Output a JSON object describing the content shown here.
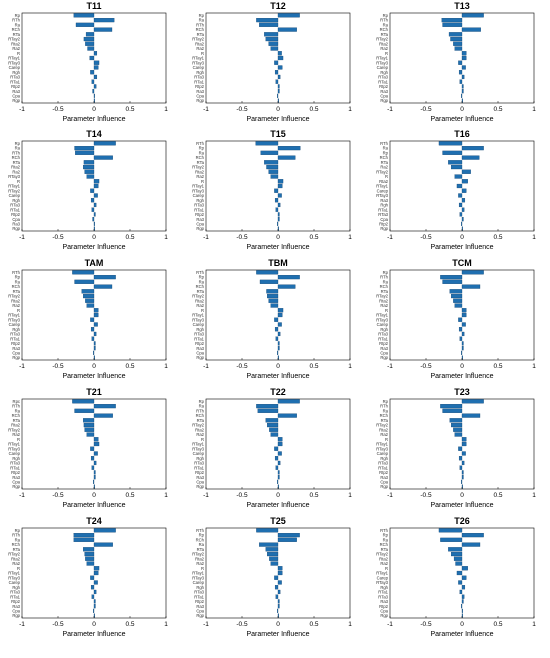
{
  "chart_data": [
    {
      "type": "bar",
      "orientation": "horizontal",
      "title": "T11",
      "xlabel": "Parameter Influence",
      "xlim": [
        -1,
        1
      ],
      "xticks": [
        "-1",
        "-0.5",
        "0",
        "0.5",
        "1"
      ],
      "categories": [
        "Rp",
        "RTh",
        "Ra",
        "RCh",
        "RTa",
        "RTay2",
        "Rta2",
        "Ra2",
        "R",
        "RTay1",
        "RTay3",
        "Carep",
        "Rgh",
        "RTa3",
        "RTa1",
        "Rtp2",
        "Ra3",
        "Cpa",
        "Rgp"
      ],
      "values": [
        -0.28,
        0.28,
        -0.25,
        0.25,
        -0.11,
        -0.14,
        -0.12,
        -0.09,
        0.04,
        -0.06,
        0.07,
        0.06,
        -0.05,
        0.04,
        -0.03,
        0.03,
        -0.02,
        0.01,
        0.01
      ]
    },
    {
      "type": "bar",
      "orientation": "horizontal",
      "title": "T12",
      "xlabel": "Parameter Influence",
      "xlim": [
        -1,
        1
      ],
      "xticks": [
        "-1",
        "-0.5",
        "0",
        "0.5",
        "1"
      ],
      "categories": [
        "Rp",
        "Ra",
        "RTh",
        "RCh",
        "RTa",
        "RTay2",
        "Rta2",
        "Ra2",
        "R",
        "RTay1",
        "RTay3",
        "Carep",
        "Rgh",
        "RTa3",
        "RTa1",
        "Rtp2",
        "Ra3",
        "Cpa",
        "Rgp"
      ],
      "values": [
        0.3,
        -0.3,
        -0.26,
        0.26,
        -0.19,
        -0.17,
        -0.13,
        -0.1,
        0.05,
        0.07,
        -0.05,
        0.06,
        -0.04,
        0.03,
        -0.03,
        0.02,
        0.02,
        -0.01,
        0.01
      ]
    },
    {
      "type": "bar",
      "orientation": "horizontal",
      "title": "T13",
      "xlabel": "Parameter Influence",
      "xlim": [
        -1,
        1
      ],
      "xticks": [
        "-1",
        "-0.5",
        "0",
        "0.5",
        "1"
      ],
      "categories": [
        "Rp",
        "RTh",
        "Ra",
        "RCh",
        "RTa",
        "RTay2",
        "Rta2",
        "Ra2",
        "R",
        "RTay1",
        "RTay3",
        "Carep",
        "Rgh",
        "RTa3",
        "RTa1",
        "Rtp2",
        "Ra3",
        "Cpa",
        "Rgp"
      ],
      "values": [
        0.3,
        -0.28,
        -0.27,
        0.26,
        -0.18,
        -0.16,
        -0.12,
        -0.1,
        0.06,
        0.06,
        -0.05,
        0.05,
        -0.04,
        0.03,
        -0.03,
        0.02,
        0.02,
        -0.01,
        0.01
      ]
    },
    {
      "type": "bar",
      "orientation": "horizontal",
      "title": "T14",
      "xlabel": "Parameter Influence",
      "xlim": [
        -1,
        1
      ],
      "xticks": [
        "-1",
        "-0.5",
        "0",
        "0.5",
        "1"
      ],
      "categories": [
        "Rp",
        "Ra",
        "RTh",
        "RCh",
        "RTa",
        "Rta2",
        "Ra2",
        "RTay3",
        "R",
        "RTay1",
        "RTay2",
        "Carep",
        "Rgh",
        "RTa3",
        "RTa1",
        "Rtp2",
        "Cpa",
        "Ra3",
        "Rgp"
      ],
      "values": [
        0.3,
        -0.27,
        -0.26,
        0.26,
        -0.14,
        -0.15,
        -0.13,
        -0.1,
        0.07,
        0.06,
        -0.05,
        0.05,
        -0.04,
        0.03,
        -0.03,
        0.02,
        -0.02,
        0.01,
        0.01
      ]
    },
    {
      "type": "bar",
      "orientation": "horizontal",
      "title": "T15",
      "xlabel": "Parameter Influence",
      "xlim": [
        -1,
        1
      ],
      "xticks": [
        "-1",
        "-0.5",
        "0",
        "0.5",
        "1"
      ],
      "categories": [
        "RTh",
        "Rp",
        "Ra",
        "RCh",
        "RTa",
        "RTay2",
        "Rta2",
        "Ra2",
        "R",
        "RTay1",
        "RTay3",
        "Carep",
        "Rgh",
        "RTa3",
        "RTa1",
        "Rtp2",
        "Ra3",
        "Cpa",
        "Rgp"
      ],
      "values": [
        -0.31,
        0.31,
        -0.24,
        0.24,
        -0.19,
        -0.16,
        -0.13,
        -0.1,
        0.07,
        0.06,
        -0.05,
        0.05,
        -0.04,
        0.03,
        -0.03,
        0.02,
        0.02,
        -0.01,
        0.01
      ]
    },
    {
      "type": "bar",
      "orientation": "horizontal",
      "title": "T16",
      "xlabel": "Parameter Influence",
      "xlim": [
        -1,
        1
      ],
      "xticks": [
        "-1",
        "-0.5",
        "0",
        "0.5",
        "1"
      ],
      "categories": [
        "RTh",
        "Ra",
        "Rp",
        "RCh",
        "RTa",
        "Ra2",
        "RTay2",
        "R",
        "Rta2",
        "RTay1",
        "Carep",
        "RTay3",
        "Ra3",
        "Rgh",
        "RTa1",
        "RTa3",
        "Cpa",
        "Rtp2",
        "Rgp"
      ],
      "values": [
        -0.32,
        0.3,
        -0.27,
        0.24,
        -0.19,
        -0.15,
        0.12,
        -0.1,
        0.08,
        -0.07,
        0.06,
        -0.05,
        0.04,
        -0.04,
        0.03,
        -0.03,
        0.02,
        -0.01,
        0.01
      ]
    },
    {
      "type": "bar",
      "orientation": "horizontal",
      "title": "TAM",
      "xlabel": "Parameter Influence",
      "xlim": [
        -1,
        1
      ],
      "xticks": [
        "-1",
        "-0.5",
        "0",
        "0.5",
        "1"
      ],
      "categories": [
        "RTh",
        "Rp",
        "Ra",
        "RCh",
        "RTa",
        "RTay2",
        "Rta2",
        "Ra2",
        "R",
        "RTay1",
        "RTay3",
        "Carep",
        "Rgh",
        "RTa3",
        "RTa1",
        "Rtp2",
        "Ra3",
        "Cpa",
        "Rgp"
      ],
      "values": [
        -0.3,
        0.3,
        -0.27,
        0.25,
        -0.17,
        -0.15,
        -0.12,
        -0.1,
        0.06,
        0.06,
        -0.05,
        0.05,
        -0.04,
        0.03,
        -0.03,
        0.02,
        0.02,
        -0.01,
        0.01
      ]
    },
    {
      "type": "bar",
      "orientation": "horizontal",
      "title": "TBM",
      "xlabel": "Parameter Influence",
      "xlim": [
        -1,
        1
      ],
      "xticks": [
        "-1",
        "-0.5",
        "0",
        "0.5",
        "1"
      ],
      "categories": [
        "RTh",
        "Rp",
        "Ra",
        "RCh",
        "RTa",
        "RTay2",
        "Rta2",
        "Ra2",
        "R",
        "RTay1",
        "RTay3",
        "Carep",
        "Rgh",
        "RTa3",
        "RTa1",
        "Rtp2",
        "Ra3",
        "Cpa",
        "Rgp"
      ],
      "values": [
        -0.3,
        0.3,
        -0.25,
        0.24,
        -0.16,
        -0.15,
        -0.13,
        -0.1,
        0.07,
        0.06,
        -0.05,
        0.05,
        -0.04,
        0.03,
        -0.03,
        0.02,
        0.02,
        -0.01,
        0.01
      ]
    },
    {
      "type": "bar",
      "orientation": "horizontal",
      "title": "TCM",
      "xlabel": "Parameter Influence",
      "xlim": [
        -1,
        1
      ],
      "xticks": [
        "-1",
        "-0.5",
        "0",
        "0.5",
        "1"
      ],
      "categories": [
        "Rp",
        "RTh",
        "Ra",
        "RCh",
        "RTa",
        "RTay2",
        "Rta2",
        "Ra2",
        "R",
        "RTay1",
        "RTay3",
        "Carep",
        "Rgh",
        "RTa3",
        "RTa1",
        "Rtp2",
        "Ra3",
        "Cpa",
        "Rgp"
      ],
      "values": [
        0.3,
        -0.3,
        -0.27,
        0.25,
        -0.17,
        -0.15,
        -0.12,
        -0.1,
        0.06,
        0.06,
        -0.05,
        0.05,
        -0.04,
        0.03,
        -0.03,
        0.02,
        0.02,
        -0.01,
        0.01
      ]
    },
    {
      "type": "bar",
      "orientation": "horizontal",
      "title": "T21",
      "xlabel": "Parameter Influence",
      "xlim": [
        -1,
        1
      ],
      "xticks": [
        "-1",
        "-0.5",
        "0",
        "0.5",
        "1"
      ],
      "categories": [
        "Rpc",
        "RTh",
        "Ra",
        "RCh",
        "RTa",
        "Rta2",
        "RTay2",
        "Ra2",
        "R",
        "RTay1",
        "RTay3",
        "Carep",
        "Rgh",
        "RTa3",
        "RTa1",
        "Rtp2",
        "Ra3",
        "Cpa",
        "Rgp"
      ],
      "values": [
        -0.3,
        0.3,
        -0.27,
        0.26,
        -0.15,
        -0.14,
        -0.13,
        -0.1,
        0.06,
        0.07,
        -0.05,
        0.05,
        -0.04,
        0.03,
        -0.03,
        0.02,
        0.02,
        -0.01,
        0.01
      ]
    },
    {
      "type": "bar",
      "orientation": "horizontal",
      "title": "T22",
      "xlabel": "Parameter Influence",
      "xlim": [
        -1,
        1
      ],
      "xticks": [
        "-1",
        "-0.5",
        "0",
        "0.5",
        "1"
      ],
      "categories": [
        "Rp",
        "Ra",
        "RTh",
        "RCh",
        "RTa",
        "RTay2",
        "Rta2",
        "Ra2",
        "R",
        "RTay1",
        "RTay3",
        "Carep",
        "Rgh",
        "RTa3",
        "RTa1",
        "Rtp2",
        "Ra3",
        "Cpa",
        "Rgp"
      ],
      "values": [
        0.3,
        -0.3,
        -0.28,
        0.26,
        -0.17,
        -0.15,
        -0.12,
        -0.1,
        0.06,
        0.06,
        -0.05,
        0.05,
        -0.04,
        0.03,
        -0.03,
        0.02,
        0.02,
        -0.01,
        0.01
      ]
    },
    {
      "type": "bar",
      "orientation": "horizontal",
      "title": "T23",
      "xlabel": "Parameter Influence",
      "xlim": [
        -1,
        1
      ],
      "xticks": [
        "-1",
        "-0.5",
        "0",
        "0.5",
        "1"
      ],
      "categories": [
        "Rp",
        "RTh",
        "Ra",
        "RCh",
        "RTa",
        "RTay2",
        "Rta2",
        "Ra2",
        "R",
        "RTay1",
        "RTay3",
        "Carep",
        "Rgh",
        "RTa3",
        "RTa1",
        "Rtp2",
        "Ra3",
        "Cpa",
        "Rgp"
      ],
      "values": [
        0.3,
        -0.3,
        -0.27,
        0.25,
        -0.17,
        -0.15,
        -0.12,
        -0.1,
        0.06,
        0.06,
        -0.05,
        0.05,
        -0.04,
        0.03,
        -0.03,
        0.02,
        0.02,
        -0.01,
        0.01
      ]
    },
    {
      "type": "bar",
      "orientation": "horizontal",
      "title": "T24",
      "xlabel": "Parameter Influence",
      "xlim": [
        -1,
        1
      ],
      "xticks": [
        "-1",
        "-0.5",
        "0",
        "0.5",
        "1"
      ],
      "categories": [
        "Rp",
        "RTh",
        "Ra",
        "RCh",
        "RTa",
        "RTay2",
        "Rta2",
        "Ra2",
        "R",
        "RTay1",
        "RTay3",
        "Carep",
        "Rgh",
        "RTa3",
        "RTa1",
        "Rtp2",
        "Ra3",
        "Cpa",
        "Rgp"
      ],
      "values": [
        0.3,
        -0.28,
        -0.28,
        0.26,
        -0.15,
        -0.13,
        -0.12,
        -0.1,
        0.07,
        0.06,
        -0.05,
        0.05,
        -0.04,
        0.03,
        -0.03,
        0.02,
        0.02,
        -0.01,
        0.01
      ]
    },
    {
      "type": "bar",
      "orientation": "horizontal",
      "title": "T25",
      "xlabel": "Parameter Influence",
      "xlim": [
        -1,
        1
      ],
      "xticks": [
        "-1",
        "-0.5",
        "0",
        "0.5",
        "1"
      ],
      "categories": [
        "RTh",
        "Rp",
        "RCh",
        "Ra",
        "RTa",
        "RTay2",
        "Rta2",
        "Ra2",
        "R",
        "RTay1",
        "RTay3",
        "Carep",
        "Rgh",
        "RTa3",
        "RTa1",
        "Rtp2",
        "Ra3",
        "Cpa",
        "Rgp"
      ],
      "values": [
        -0.3,
        0.3,
        0.26,
        -0.26,
        -0.17,
        -0.15,
        -0.12,
        -0.1,
        0.06,
        0.06,
        -0.05,
        0.05,
        -0.04,
        0.03,
        -0.03,
        0.02,
        0.02,
        -0.01,
        0.01
      ]
    },
    {
      "type": "bar",
      "orientation": "horizontal",
      "title": "T26",
      "xlabel": "Parameter Influence",
      "xlim": [
        -1,
        1
      ],
      "xticks": [
        "-1",
        "-0.5",
        "0",
        "0.5",
        "1"
      ],
      "categories": [
        "RTh",
        "Rp",
        "Ra",
        "RCh",
        "RTa",
        "RTay2",
        "Rta2",
        "Ra2",
        "R",
        "RTay1",
        "Carep",
        "RTay3",
        "Rgh",
        "RTa1",
        "RTa3",
        "Ra3",
        "Rtp2",
        "Cpa",
        "Rgp"
      ],
      "values": [
        -0.32,
        0.3,
        -0.3,
        0.25,
        -0.19,
        -0.15,
        -0.11,
        -0.09,
        0.08,
        -0.07,
        0.06,
        -0.05,
        0.04,
        -0.03,
        0.03,
        0.02,
        -0.01,
        0.01,
        0.01
      ]
    }
  ],
  "style": {
    "bar_color": "#1f6fb0",
    "bar_edge": "#0a3a66",
    "axis_color": "#000000"
  }
}
